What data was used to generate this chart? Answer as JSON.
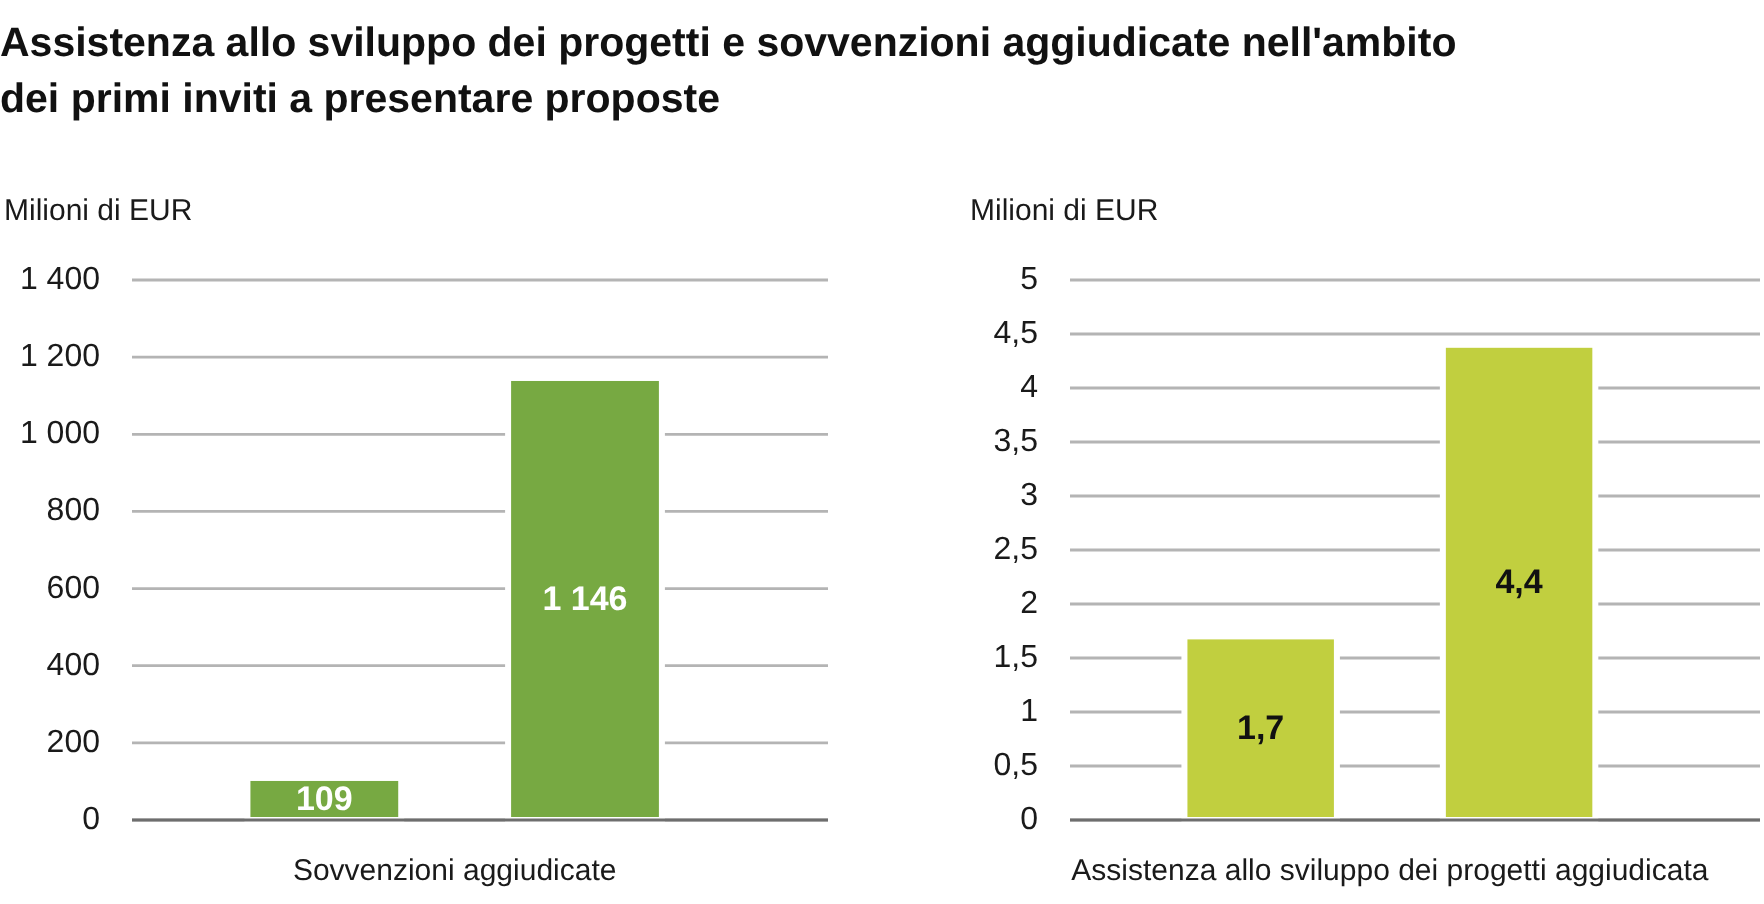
{
  "chart_data": [
    {
      "type": "bar",
      "title": "Assistenza allo sviluppo dei progetti e sovvenzioni aggiudicate nell'ambito dei primi inviti a presentare proposte",
      "ylabel": "Milioni di EUR",
      "xlabel": "Sovvenzioni aggiudicate",
      "categories": [
        null,
        null
      ],
      "values": [
        109,
        1146
      ],
      "color": "#77a942",
      "value_labels": [
        "109",
        "1 146"
      ],
      "ylim": [
        0,
        1400
      ],
      "yticks": [
        0,
        200,
        400,
        600,
        800,
        {
          "value": 1000,
          "label": "1 000"
        },
        {
          "value": 1200,
          "label": "1 200"
        },
        {
          "value": 1400,
          "label": "1 400"
        }
      ],
      "grid": "y"
    },
    {
      "type": "bar",
      "ylabel": "Milioni di EUR",
      "xlabel": "Assistenza allo sviluppo dei progetti aggiudicata",
      "categories": [
        null,
        null
      ],
      "values": [
        1.7,
        4.4
      ],
      "color": "#c1cf3f",
      "value_labels": [
        "1,7",
        "4,4"
      ],
      "ylim": [
        0,
        5
      ],
      "yticks": [
        0,
        {
          "value": 0.5,
          "label": "0,5"
        },
        1,
        {
          "value": 1.5,
          "label": "1,5"
        },
        2,
        {
          "value": 2.5,
          "label": "2,5"
        },
        3,
        {
          "value": 3.5,
          "label": "3,5"
        },
        4,
        {
          "value": 4.5,
          "label": "4,5"
        },
        5
      ],
      "grid": "y"
    }
  ]
}
